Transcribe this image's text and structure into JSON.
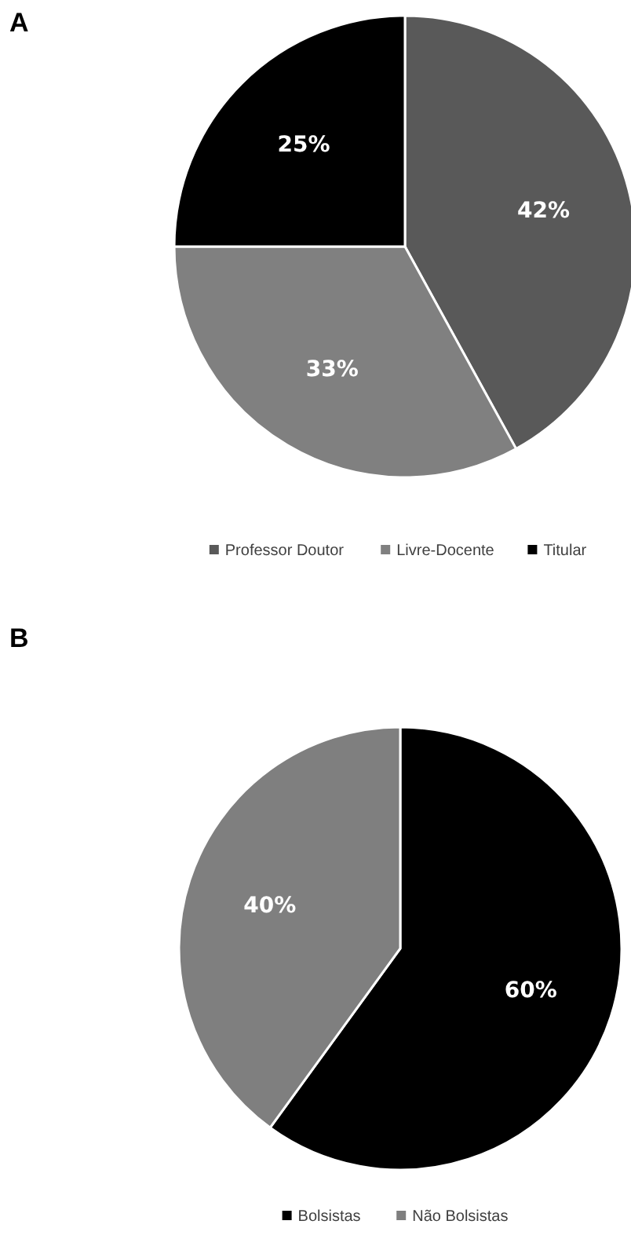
{
  "chart_data": [
    {
      "type": "pie",
      "title": "A",
      "categories": [
        "Professor Doutor",
        "Livre-Docente",
        "Titular"
      ],
      "values": [
        42,
        33,
        25
      ],
      "colors": [
        "#595959",
        "#808080",
        "#000000"
      ],
      "value_labels": [
        "42%",
        "33%",
        "25%"
      ],
      "legend": "bottom"
    },
    {
      "type": "pie",
      "title": "B",
      "categories": [
        "Bolsistas",
        "Não Bolsistas"
      ],
      "values": [
        60,
        40
      ],
      "colors": [
        "#000000",
        "#7f7f7f"
      ],
      "value_labels": [
        "60%",
        "40%"
      ],
      "legend": "bottom"
    }
  ]
}
